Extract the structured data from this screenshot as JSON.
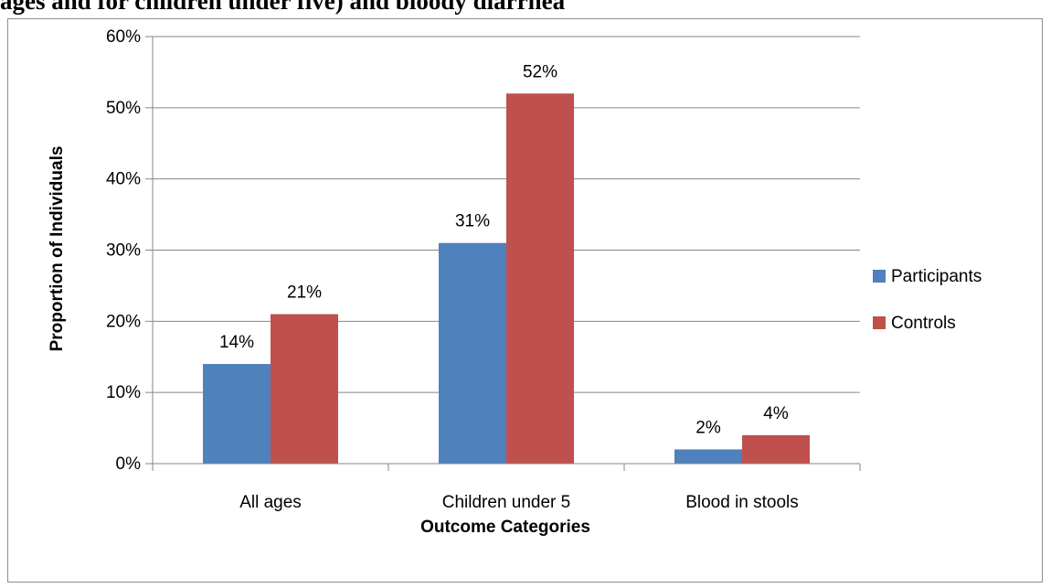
{
  "heading": "ages and for children under five) and bloody diarrhea",
  "colors": {
    "participants": "#4f81bd",
    "controls": "#c0504d",
    "grid": "#868686",
    "axis": "#868686",
    "text": "#000000"
  },
  "chart_data": {
    "type": "bar",
    "categories": [
      "All ages",
      "Children under 5",
      "Blood in stools"
    ],
    "series": [
      {
        "name": "Participants",
        "values": [
          0.14,
          0.31,
          0.02
        ],
        "labels": [
          "14%",
          "31%",
          "2%"
        ],
        "color": "#4f81bd"
      },
      {
        "name": "Controls",
        "values": [
          0.21,
          0.52,
          0.04
        ],
        "labels": [
          "21%",
          "52%",
          "4%"
        ],
        "color": "#c0504d"
      }
    ],
    "xlabel": "Outcome Categories",
    "ylabel": "Proportion of Individuals",
    "ylim": [
      0,
      0.6
    ],
    "yticks": [
      0,
      0.1,
      0.2,
      0.3,
      0.4,
      0.5,
      0.6
    ],
    "ytick_labels": [
      "0%",
      "10%",
      "20%",
      "30%",
      "40%",
      "50%",
      "60%"
    ],
    "grid": true,
    "legend": "right"
  }
}
